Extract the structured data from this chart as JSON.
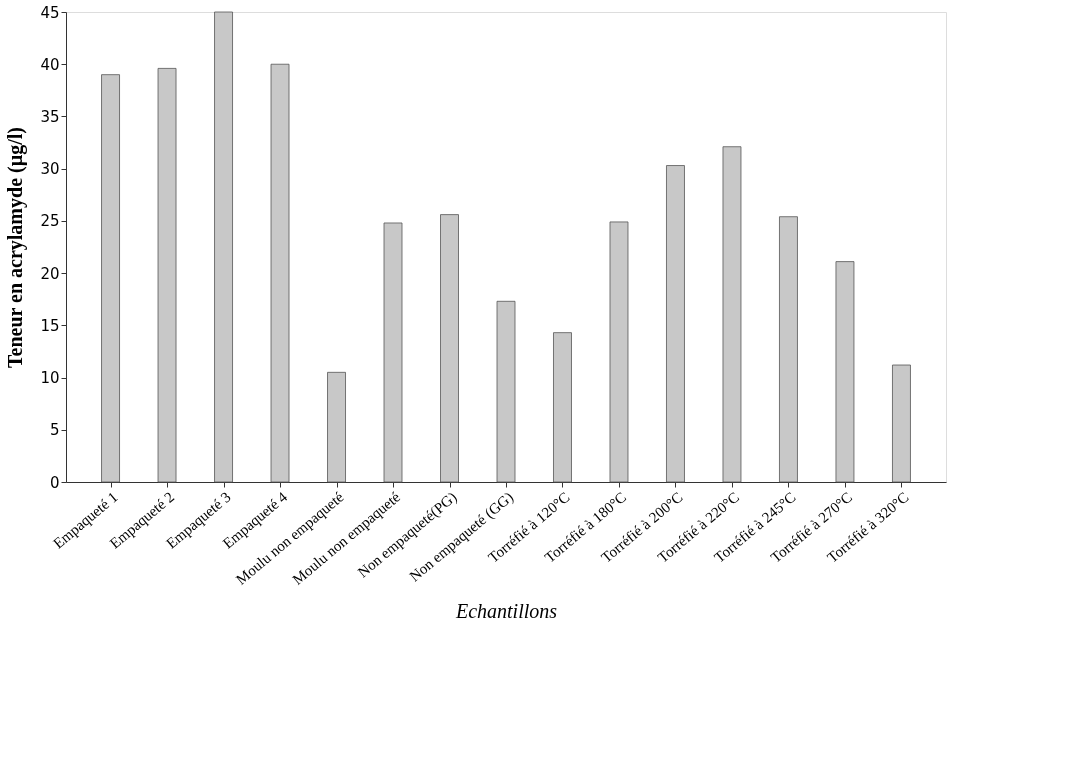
{
  "chart_data": {
    "type": "bar",
    "xlabel": "Echantillons",
    "ylabel": "Teneur en acrylamyde (µg/l)",
    "categories": [
      "Empaqueté 1",
      "Empaqueté 2",
      "Empaqueté 3",
      "Empaqueté 4",
      "Moulu non empaqueté",
      "Moulu non empaqueté",
      "Non empaqueté(PG)",
      "Non empaqueté (GG)",
      "Torréfié à 120°C",
      "Torréfié à 180°C",
      "Torréfié à 200°C",
      "Torréfié à 220°C",
      "Torréfié à 245°C",
      "Torréfié à 270°C",
      "Torréfié à 320°C"
    ],
    "values": [
      39,
      39.6,
      45,
      40,
      10.5,
      24.8,
      25.6,
      17.3,
      14.3,
      24.9,
      30.3,
      32.1,
      25.4,
      21.1,
      11.2
    ],
    "color": "#c8c8c8",
    "ylim": [
      0,
      45
    ],
    "yticks": [
      0,
      5,
      10,
      15,
      20,
      25,
      30,
      35,
      40,
      45
    ],
    "grid": false
  }
}
